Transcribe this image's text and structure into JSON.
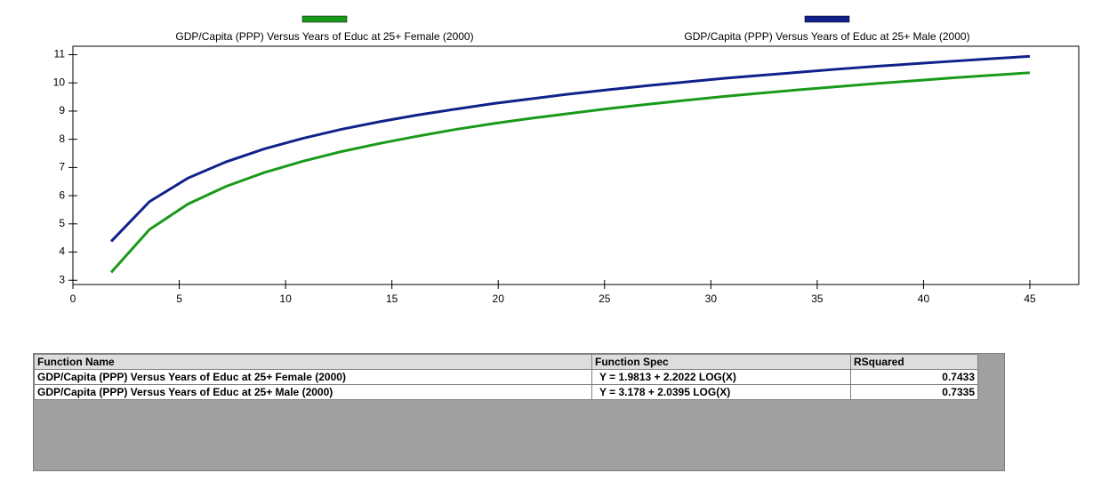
{
  "chart_data": {
    "type": "line",
    "x": [
      1.8,
      3.6,
      5.4,
      7.2,
      9,
      10.8,
      12.6,
      14.4,
      16.2,
      18,
      19.8,
      21.6,
      23.4,
      25.2,
      27,
      28.8,
      30.6,
      32.4,
      34.2,
      36,
      37.8,
      39.6,
      41.4,
      43.2,
      45
    ],
    "series": [
      {
        "name": "GDP/Capita (PPP) Versus Years of Educ at 25+ Female (2000)",
        "color": "#1a9a1a",
        "values": [
          3.28,
          4.8,
          5.7,
          6.33,
          6.82,
          7.22,
          7.56,
          7.85,
          8.11,
          8.35,
          8.56,
          8.75,
          8.92,
          9.09,
          9.24,
          9.38,
          9.52,
          9.64,
          9.76,
          9.87,
          9.98,
          10.08,
          10.18,
          10.27,
          10.36
        ]
      },
      {
        "name": "GDP/Capita (PPP) Versus Years of Educ at 25+ Male (2000)",
        "color": "#10218b",
        "values": [
          4.38,
          5.79,
          6.62,
          7.2,
          7.66,
          8.03,
          8.35,
          8.62,
          8.86,
          9.07,
          9.27,
          9.44,
          9.61,
          9.76,
          9.9,
          10.03,
          10.16,
          10.27,
          10.38,
          10.49,
          10.59,
          10.68,
          10.77,
          10.86,
          10.94
        ]
      }
    ],
    "xlim": [
      0,
      47.3
    ],
    "xticks": [
      0,
      5,
      10,
      15,
      20,
      25,
      30,
      35,
      40,
      45
    ],
    "ylim": [
      2.85,
      11.3
    ],
    "yticks": [
      3,
      4,
      5,
      6,
      7,
      8,
      9,
      10,
      11
    ]
  },
  "table": {
    "columns": [
      "Function Name",
      "Function Spec",
      "RSquared"
    ],
    "rows": [
      [
        "GDP/Capita (PPP) Versus Years of Educ at 25+ Female (2000)",
        "Y = 1.9813 + 2.2022 LOG(X)",
        "0.7433"
      ],
      [
        "GDP/Capita (PPP) Versus Years of Educ at 25+ Male (2000)",
        "Y = 3.178 + 2.0395 LOG(X)",
        "0.7335"
      ]
    ]
  }
}
